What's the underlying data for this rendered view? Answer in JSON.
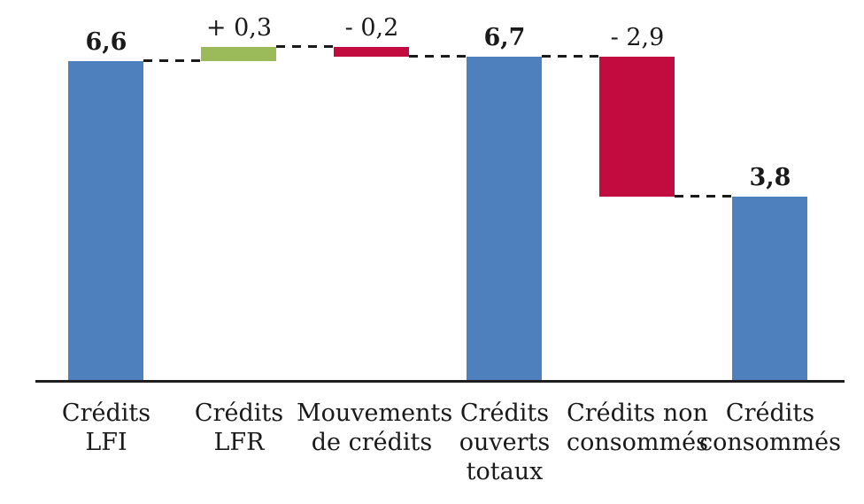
{
  "chart_data": {
    "type": "bar",
    "subtype": "waterfall",
    "title": "",
    "grid": false,
    "legend": false,
    "axis": {
      "x_visible": true,
      "y_visible": false
    },
    "ylim": [
      0,
      7.9
    ],
    "colors": {
      "blue": "#4d80bc",
      "green": "#9bba59",
      "red": "#c20b3e",
      "axis": "#1f1f1f",
      "text": "#1a1a1a",
      "connector": "#1a1a1a"
    },
    "bars": [
      {
        "name": "credits-lfi",
        "label_lines": [
          "Crédits",
          "LFI"
        ],
        "display_value": "6,6",
        "value": 6.6,
        "start": 0,
        "end": 6.6,
        "role": "total",
        "color_key": "blue",
        "value_bold": true
      },
      {
        "name": "credits-lfr",
        "label_lines": [
          "Crédits",
          "LFR"
        ],
        "display_value": "+ 0,3",
        "value": 0.3,
        "start": 6.6,
        "end": 6.9,
        "role": "increase",
        "color_key": "green",
        "value_bold": false
      },
      {
        "name": "mouvements-de-credits",
        "label_lines": [
          "Mouvements",
          "de crédits"
        ],
        "display_value": "- 0,2",
        "value": -0.2,
        "start": 6.9,
        "end": 6.7,
        "role": "decrease",
        "color_key": "red",
        "value_bold": false
      },
      {
        "name": "credits-ouverts-totaux",
        "label_lines": [
          "Crédits",
          "ouverts",
          "totaux"
        ],
        "display_value": "6,7",
        "value": 6.7,
        "start": 0,
        "end": 6.7,
        "role": "total",
        "color_key": "blue",
        "value_bold": true
      },
      {
        "name": "credits-non-consommes",
        "label_lines": [
          "Crédits non",
          "consommés"
        ],
        "display_value": "- 2,9",
        "value": -2.9,
        "start": 6.7,
        "end": 3.8,
        "role": "decrease",
        "color_key": "red",
        "value_bold": false
      },
      {
        "name": "credits-consommes",
        "label_lines": [
          "Crédits",
          "consommés"
        ],
        "display_value": "3,8",
        "value": 3.8,
        "start": 0,
        "end": 3.8,
        "role": "total",
        "color_key": "blue",
        "value_bold": true
      }
    ],
    "connectors": [
      {
        "level": 6.6,
        "between": [
          0,
          1
        ]
      },
      {
        "level": 6.9,
        "between": [
          1,
          2
        ]
      },
      {
        "level": 6.7,
        "between": [
          2,
          3
        ]
      },
      {
        "level": 6.7,
        "between": [
          3,
          4
        ]
      },
      {
        "level": 3.8,
        "between": [
          4,
          5
        ]
      }
    ]
  }
}
